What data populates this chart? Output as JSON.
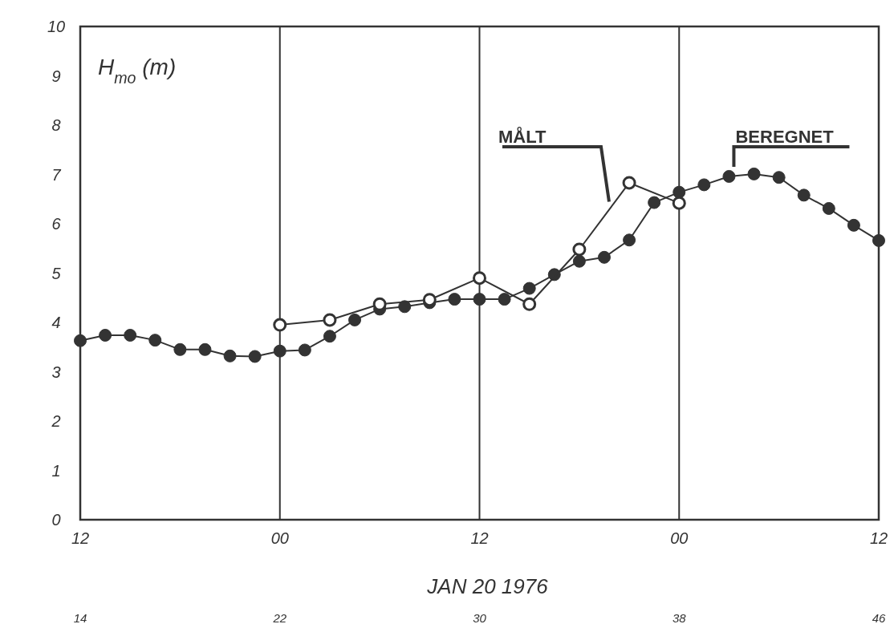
{
  "chart_data": {
    "type": "line",
    "ylabel": "H$_{mo}$ (m)",
    "xlabel": "JAN 20 1976",
    "xlim": [
      "1976-01-19T12:00",
      "1976-01-21T12:00"
    ],
    "xticks": [
      {
        "value": "1976-01-19T12:00",
        "label": "12"
      },
      {
        "value": "1976-01-20T00:00",
        "label": "00"
      },
      {
        "value": "1976-01-20T12:00",
        "label": "12"
      },
      {
        "value": "1976-01-21T00:00",
        "label": "00"
      },
      {
        "value": "1976-01-21T12:00",
        "label": "12"
      }
    ],
    "x2lim": [
      14,
      46
    ],
    "x2ticks": [
      14,
      22,
      30,
      38,
      46
    ],
    "ylim": [
      0,
      10
    ],
    "yticks": [
      0,
      1,
      2,
      3,
      4,
      5,
      6,
      7,
      8,
      9,
      10
    ],
    "grid": "x",
    "marker": "circle",
    "line_style": "solid",
    "series": [
      {
        "name": "MÅLT",
        "color": "#333333",
        "x": [
          "1976-01-20T00:00",
          "1976-01-20T03:00",
          "1976-01-20T06:00",
          "1976-01-20T09:00",
          "1976-01-20T12:00",
          "1976-01-20T15:00",
          "1976-01-20T18:00",
          "1976-01-20T21:00",
          "1976-01-21T00:00"
        ],
        "values": [
          3.95,
          4.05,
          4.37,
          4.46,
          4.9,
          4.37,
          5.48,
          6.83,
          6.42
        ]
      },
      {
        "name": "BEREGNET",
        "color": "#333333",
        "x": [
          "1976-01-19T12:00",
          "1976-01-19T13:30",
          "1976-01-19T15:00",
          "1976-01-19T16:30",
          "1976-01-19T18:00",
          "1976-01-19T19:30",
          "1976-01-19T21:00",
          "1976-01-19T22:30",
          "1976-01-20T00:00",
          "1976-01-20T01:30",
          "1976-01-20T03:00",
          "1976-01-20T04:30",
          "1976-01-20T06:00",
          "1976-01-20T07:30",
          "1976-01-20T09:00",
          "1976-01-20T10:30",
          "1976-01-20T12:00",
          "1976-01-20T13:30",
          "1976-01-20T15:00",
          "1976-01-20T16:30",
          "1976-01-20T18:00",
          "1976-01-20T19:30",
          "1976-01-20T21:00",
          "1976-01-20T22:30",
          "1976-01-21T00:00",
          "1976-01-21T01:30",
          "1976-01-21T03:00",
          "1976-01-21T04:30",
          "1976-01-21T06:00",
          "1976-01-21T07:30",
          "1976-01-21T09:00",
          "1976-01-21T10:30",
          "1976-01-21T12:00"
        ],
        "values": [
          3.63,
          3.74,
          3.74,
          3.64,
          3.45,
          3.45,
          3.32,
          3.31,
          3.42,
          3.44,
          3.72,
          4.05,
          4.27,
          4.32,
          4.4,
          4.47,
          4.47,
          4.47,
          4.69,
          4.97,
          5.24,
          5.32,
          5.67,
          6.43,
          6.64,
          6.79,
          6.96,
          7.01,
          6.94,
          6.58,
          6.31,
          5.97,
          5.66
        ]
      }
    ]
  }
}
